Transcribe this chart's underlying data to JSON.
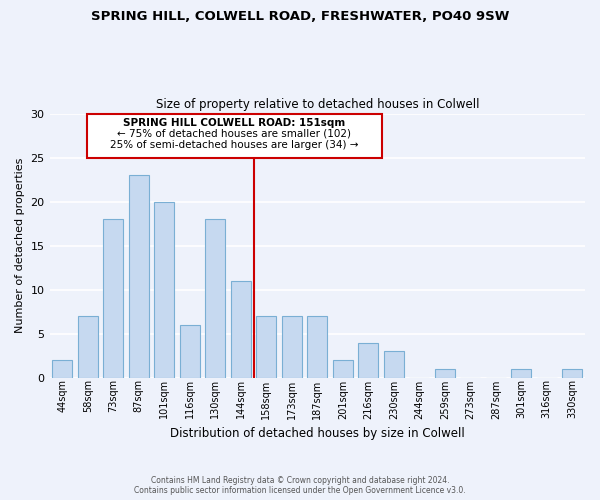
{
  "title1": "SPRING HILL, COLWELL ROAD, FRESHWATER, PO40 9SW",
  "title2": "Size of property relative to detached houses in Colwell",
  "xlabel": "Distribution of detached houses by size in Colwell",
  "ylabel": "Number of detached properties",
  "bar_labels": [
    "44sqm",
    "58sqm",
    "73sqm",
    "87sqm",
    "101sqm",
    "116sqm",
    "130sqm",
    "144sqm",
    "158sqm",
    "173sqm",
    "187sqm",
    "201sqm",
    "216sqm",
    "230sqm",
    "244sqm",
    "259sqm",
    "273sqm",
    "287sqm",
    "301sqm",
    "316sqm",
    "330sqm"
  ],
  "bar_values": [
    2,
    7,
    18,
    23,
    20,
    6,
    18,
    11,
    7,
    7,
    7,
    2,
    4,
    3,
    0,
    1,
    0,
    0,
    1,
    0,
    1
  ],
  "bar_color": "#c6d9f0",
  "bar_edge_color": "#7aafd4",
  "reference_line_x": 7.5,
  "reference_line_color": "#cc0000",
  "ylim": [
    0,
    30
  ],
  "yticks": [
    0,
    5,
    10,
    15,
    20,
    25,
    30
  ],
  "annotation_title": "SPRING HILL COLWELL ROAD: 151sqm",
  "annotation_line1": "← 75% of detached houses are smaller (102)",
  "annotation_line2": "25% of semi-detached houses are larger (34) →",
  "annotation_box_facecolor": "#ffffff",
  "annotation_box_edgecolor": "#cc0000",
  "footer1": "Contains HM Land Registry data © Crown copyright and database right 2024.",
  "footer2": "Contains public sector information licensed under the Open Government Licence v3.0.",
  "background_color": "#eef2fb",
  "grid_color": "#ffffff"
}
